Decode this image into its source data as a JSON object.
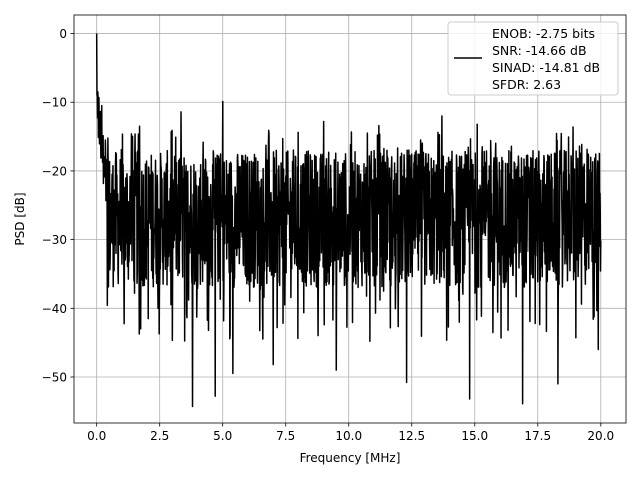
{
  "chart_data": {
    "type": "line",
    "title": "",
    "xlabel": "Frequency [MHz]",
    "ylabel": "PSD [dB]",
    "xlim": [
      -0.9,
      21.0
    ],
    "ylim": [
      -56.7,
      2.7
    ],
    "xticks": [
      0.0,
      2.5,
      5.0,
      7.5,
      10.0,
      12.5,
      15.0,
      17.5,
      20.0
    ],
    "xtick_labels": [
      "0.0",
      "2.5",
      "5.0",
      "7.5",
      "10.0",
      "12.5",
      "15.0",
      "17.5",
      "20.0"
    ],
    "yticks": [
      0,
      -10,
      -20,
      -30,
      -40,
      -50
    ],
    "ytick_labels": [
      "0",
      "−10",
      "−20",
      "−30",
      "−40",
      "−50"
    ],
    "grid": true,
    "legend_position": "top-right",
    "legend_lines": [
      "ENOB: -2.75 bits",
      "SNR: -14.66 dB",
      "SINAD: -14.81 dB",
      "SFDR: 2.63"
    ],
    "line_color": "#000000",
    "series": [
      {
        "x_start": 0.0,
        "x_end": 20.0,
        "points": 1800,
        "noise_floor_mean_db": -27,
        "noise_band_db": [
          -37,
          -17
        ],
        "deep_dips": [
          {
            "x": 1.75,
            "y": -43
          },
          {
            "x": 3.8,
            "y": -54.3
          },
          {
            "x": 4.7,
            "y": -52.8
          },
          {
            "x": 5.4,
            "y": -49.5
          },
          {
            "x": 7.0,
            "y": -48.2
          },
          {
            "x": 9.5,
            "y": -49.0
          },
          {
            "x": 12.3,
            "y": -50.8
          },
          {
            "x": 14.8,
            "y": -53.2
          },
          {
            "x": 16.9,
            "y": -53.9
          },
          {
            "x": 18.3,
            "y": -51.0
          },
          {
            "x": 19.9,
            "y": -46.0
          }
        ],
        "peaks": [
          {
            "x": 0.0,
            "y": 0.0
          },
          {
            "x": 0.05,
            "y": -8.5
          },
          {
            "x": 0.2,
            "y": -10.5
          },
          {
            "x": 1.7,
            "y": -13.5
          },
          {
            "x": 3.35,
            "y": -11.4
          },
          {
            "x": 5.0,
            "y": -9.9
          },
          {
            "x": 9.0,
            "y": -12.8
          },
          {
            "x": 11.2,
            "y": -13.4
          },
          {
            "x": 13.7,
            "y": -12.0
          },
          {
            "x": 15.1,
            "y": -13.2
          },
          {
            "x": 18.9,
            "y": -13.6
          }
        ]
      }
    ]
  }
}
